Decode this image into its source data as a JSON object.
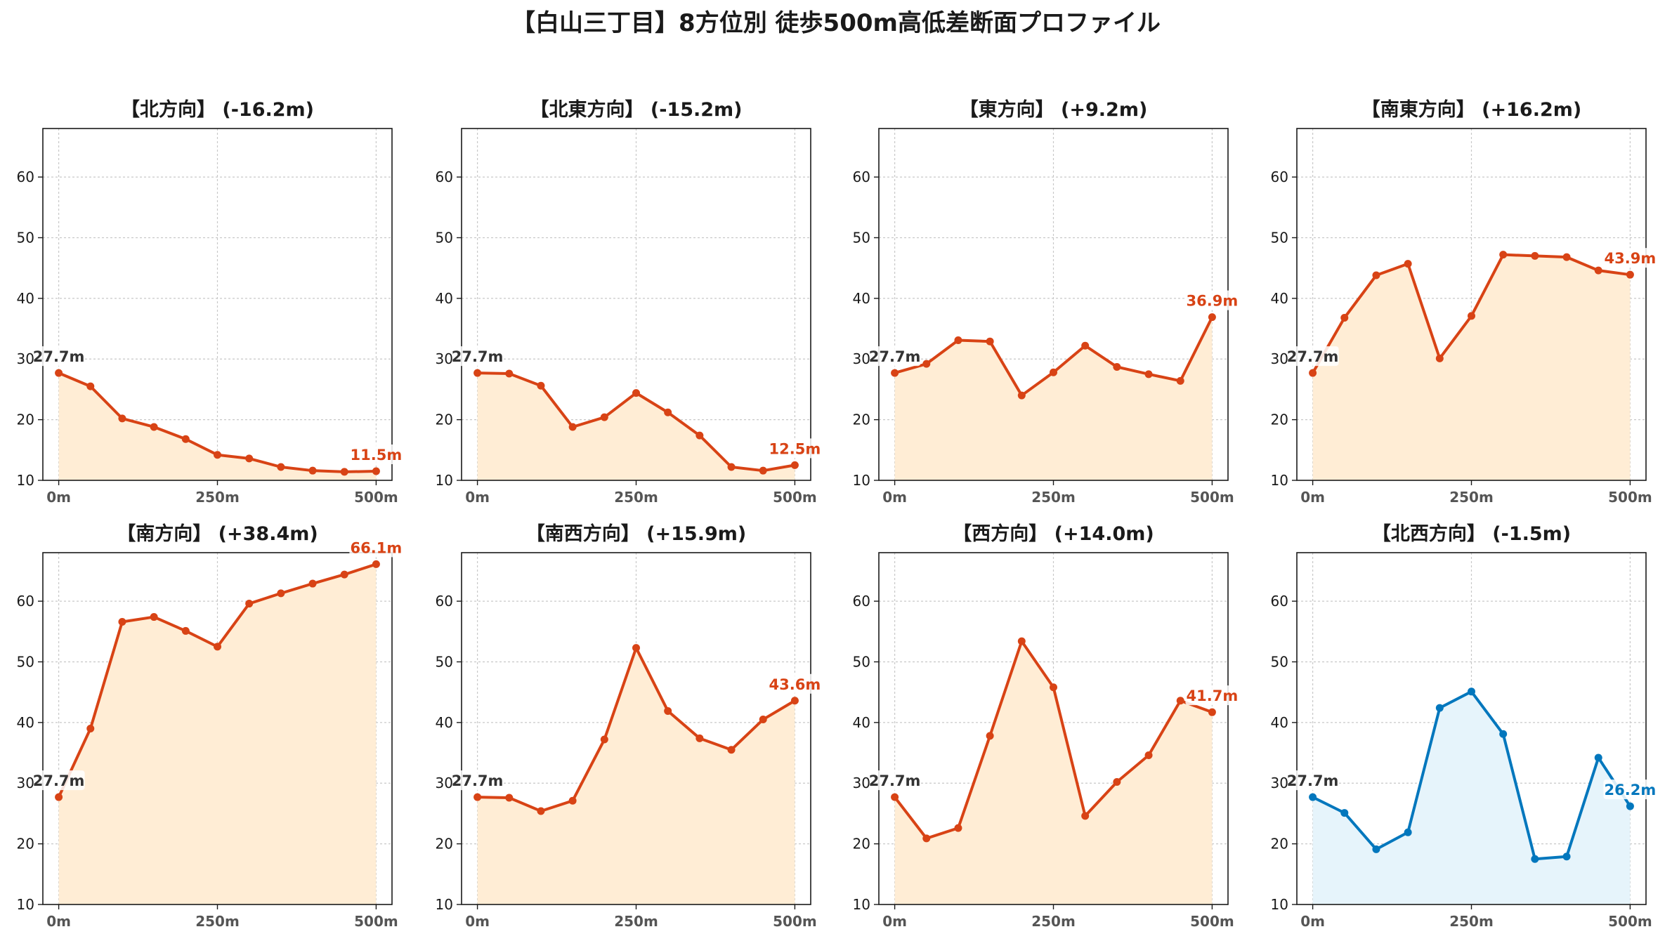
{
  "title": "【白山三丁目】8方位別 徒歩500m高低差断面プロファイル",
  "colors": {
    "down_line": "#d84315",
    "down_fill": "#ffedd5",
    "up_line": "#0277bd",
    "up_fill": "#e6f4fb",
    "grid": "#c8c8c8",
    "start_label": "#333333"
  },
  "chart_data": [
    {
      "type": "area",
      "title": "【北方向】 (-16.2m)",
      "x": [
        0,
        50,
        100,
        150,
        200,
        250,
        300,
        350,
        400,
        450,
        500
      ],
      "x_tick_labels": [
        "0m",
        "250m",
        "500m"
      ],
      "y": [
        27.7,
        25.5,
        20.2,
        18.8,
        16.8,
        14.2,
        13.6,
        12.2,
        11.6,
        11.4,
        11.5
      ],
      "ylim": [
        10,
        68
      ],
      "y_ticks": [
        10,
        20,
        30,
        40,
        50,
        60
      ],
      "start_label": "27.7m",
      "end_label": "11.5m",
      "color_scheme": "orange",
      "grid": true
    },
    {
      "type": "area",
      "title": "【北東方向】 (-15.2m)",
      "x": [
        0,
        50,
        100,
        150,
        200,
        250,
        300,
        350,
        400,
        450,
        500
      ],
      "x_tick_labels": [
        "0m",
        "250m",
        "500m"
      ],
      "y": [
        27.7,
        27.6,
        25.6,
        18.8,
        20.4,
        24.4,
        21.2,
        17.4,
        12.2,
        11.6,
        12.5
      ],
      "ylim": [
        10,
        68
      ],
      "y_ticks": [
        10,
        20,
        30,
        40,
        50,
        60
      ],
      "start_label": "27.7m",
      "end_label": "12.5m",
      "color_scheme": "orange",
      "grid": true
    },
    {
      "type": "area",
      "title": "【東方向】 (+9.2m)",
      "x": [
        0,
        50,
        100,
        150,
        200,
        250,
        300,
        350,
        400,
        450,
        500
      ],
      "x_tick_labels": [
        "0m",
        "250m",
        "500m"
      ],
      "y": [
        27.7,
        29.2,
        33.1,
        32.9,
        24.0,
        27.8,
        32.2,
        28.7,
        27.5,
        26.4,
        36.9
      ],
      "ylim": [
        10,
        68
      ],
      "y_ticks": [
        10,
        20,
        30,
        40,
        50,
        60
      ],
      "start_label": "27.7m",
      "end_label": "36.9m",
      "color_scheme": "orange",
      "grid": true
    },
    {
      "type": "area",
      "title": "【南東方向】 (+16.2m)",
      "x": [
        0,
        50,
        100,
        150,
        200,
        250,
        300,
        350,
        400,
        450,
        500
      ],
      "x_tick_labels": [
        "0m",
        "250m",
        "500m"
      ],
      "y": [
        27.7,
        36.8,
        43.8,
        45.7,
        30.1,
        37.1,
        47.2,
        47.0,
        46.8,
        44.6,
        43.9
      ],
      "ylim": [
        10,
        68
      ],
      "y_ticks": [
        10,
        20,
        30,
        40,
        50,
        60
      ],
      "start_label": "27.7m",
      "end_label": "43.9m",
      "color_scheme": "orange",
      "grid": true
    },
    {
      "type": "area",
      "title": "【南方向】 (+38.4m)",
      "x": [
        0,
        50,
        100,
        150,
        200,
        250,
        300,
        350,
        400,
        450,
        500
      ],
      "x_tick_labels": [
        "0m",
        "250m",
        "500m"
      ],
      "y": [
        27.7,
        39.0,
        56.6,
        57.4,
        55.1,
        52.5,
        59.6,
        61.3,
        62.9,
        64.4,
        66.1
      ],
      "ylim": [
        10,
        68
      ],
      "y_ticks": [
        10,
        20,
        30,
        40,
        50,
        60
      ],
      "start_label": "27.7m",
      "end_label": "66.1m",
      "color_scheme": "orange",
      "grid": true
    },
    {
      "type": "area",
      "title": "【南西方向】 (+15.9m)",
      "x": [
        0,
        50,
        100,
        150,
        200,
        250,
        300,
        350,
        400,
        450,
        500
      ],
      "x_tick_labels": [
        "0m",
        "250m",
        "500m"
      ],
      "y": [
        27.7,
        27.6,
        25.4,
        27.1,
        37.2,
        52.3,
        41.9,
        37.4,
        35.5,
        40.5,
        43.6
      ],
      "ylim": [
        10,
        68
      ],
      "y_ticks": [
        10,
        20,
        30,
        40,
        50,
        60
      ],
      "start_label": "27.7m",
      "end_label": "43.6m",
      "color_scheme": "orange",
      "grid": true
    },
    {
      "type": "area",
      "title": "【西方向】 (+14.0m)",
      "x": [
        0,
        50,
        100,
        150,
        200,
        250,
        300,
        350,
        400,
        450,
        500
      ],
      "x_tick_labels": [
        "0m",
        "250m",
        "500m"
      ],
      "y": [
        27.7,
        20.9,
        22.6,
        37.8,
        53.4,
        45.8,
        24.6,
        30.2,
        34.6,
        43.6,
        41.7
      ],
      "ylim": [
        10,
        68
      ],
      "y_ticks": [
        10,
        20,
        30,
        40,
        50,
        60
      ],
      "start_label": "27.7m",
      "end_label": "41.7m",
      "color_scheme": "orange",
      "grid": true
    },
    {
      "type": "area",
      "title": "【北西方向】 (-1.5m)",
      "x": [
        0,
        50,
        100,
        150,
        200,
        250,
        300,
        350,
        400,
        450,
        500
      ],
      "x_tick_labels": [
        "0m",
        "250m",
        "500m"
      ],
      "y": [
        27.7,
        25.1,
        19.1,
        21.9,
        42.4,
        45.1,
        38.1,
        17.5,
        17.9,
        34.2,
        26.2
      ],
      "ylim": [
        10,
        68
      ],
      "y_ticks": [
        10,
        20,
        30,
        40,
        50,
        60
      ],
      "start_label": "27.7m",
      "end_label": "26.2m",
      "color_scheme": "blue",
      "grid": true
    }
  ]
}
